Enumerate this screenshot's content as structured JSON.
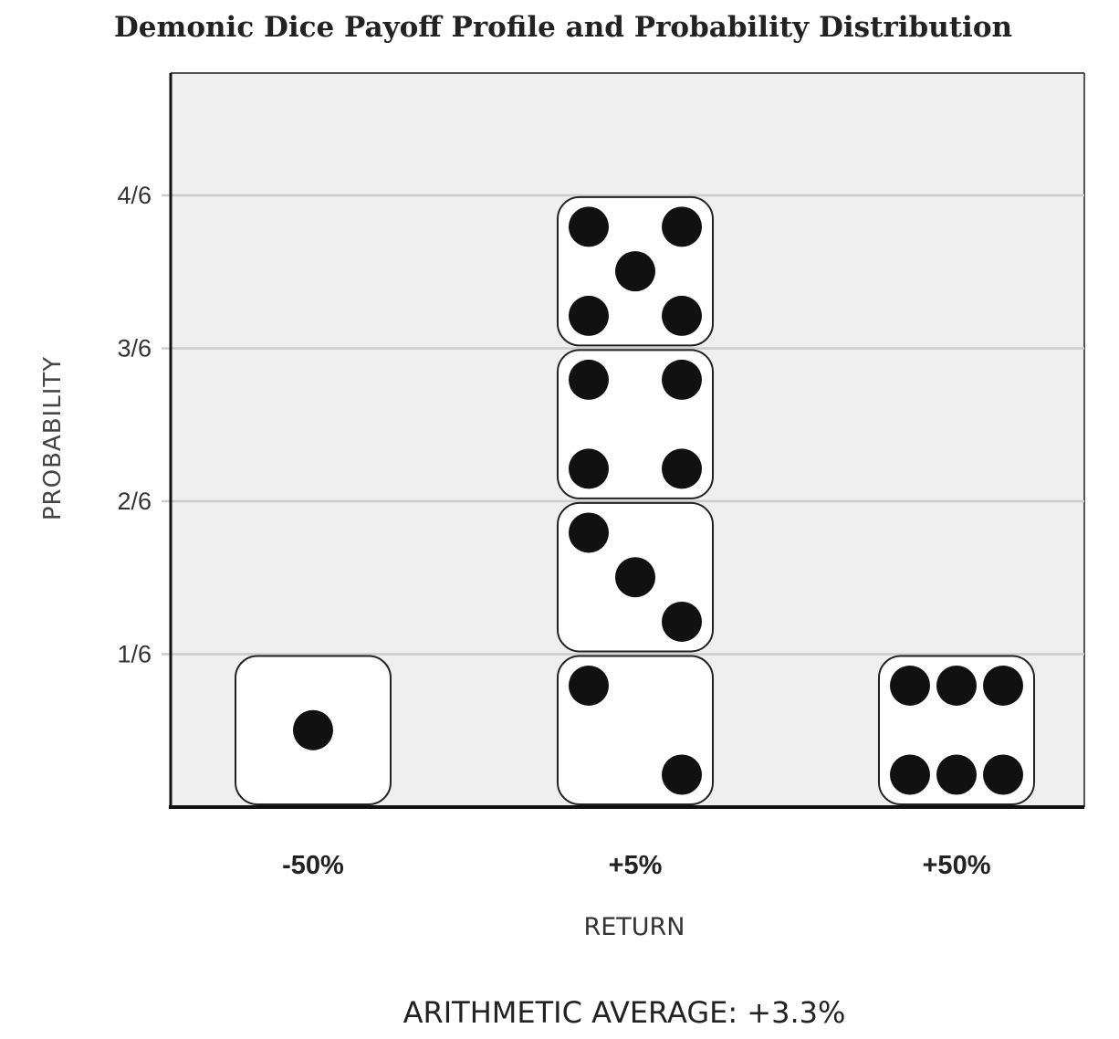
{
  "chart_data": {
    "type": "bar",
    "title": "Demonic Dice Payoff Profile and Probability Distribution",
    "xlabel": "RETURN",
    "ylabel": "PROBABILITY",
    "categories": [
      "-50%",
      "+5%",
      "+50%"
    ],
    "values": [
      0.1667,
      0.6667,
      0.1667
    ],
    "y_tick_labels": [
      "1/6",
      "2/6",
      "3/6",
      "4/6"
    ],
    "y_ticks": [
      0.1667,
      0.3333,
      0.5,
      0.6667
    ],
    "ylim": [
      0,
      0.8
    ],
    "grid": true,
    "dice_faces": [
      [
        1
      ],
      [
        2,
        3,
        4,
        5
      ],
      [
        6
      ]
    ],
    "annotation": "ARITHMETIC AVERAGE: +3.3%"
  },
  "colors": {
    "plot_background": "#efefef",
    "gridline": "#cccccc",
    "axis": "#111111",
    "die_fill": "#ffffff",
    "die_stroke": "#222222",
    "pip": "#111111"
  }
}
